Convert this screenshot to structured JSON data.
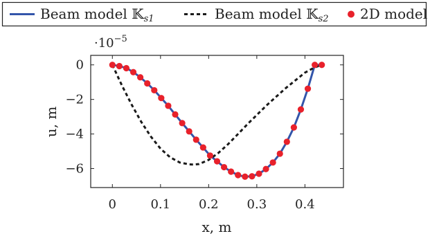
{
  "chart_data": {
    "type": "line",
    "title": "",
    "xlabel": "x, m",
    "ylabel": "u, m",
    "y_scale_note": "·10",
    "y_scale_exponent": "−5",
    "xlim": [
      -0.045,
      0.48
    ],
    "ylim": [
      -7.1,
      0.55
    ],
    "x_ticks": [
      0,
      0.1,
      0.2,
      0.3,
      0.4
    ],
    "x_tick_labels": [
      "0",
      "0.1",
      "0.2",
      "0.3",
      "0.4"
    ],
    "y_ticks": [
      0,
      -2,
      -4,
      -6
    ],
    "y_tick_labels": [
      "0",
      "−2",
      "−4",
      "−6"
    ],
    "grid": false,
    "legend_position": "top",
    "series": [
      {
        "name": "Beam model 𝕂s1",
        "style": "solid",
        "color": "#3355aa",
        "x": [
          0,
          0.0145,
          0.029,
          0.0435,
          0.058,
          0.0725,
          0.087,
          0.1015,
          0.116,
          0.1305,
          0.145,
          0.1595,
          0.174,
          0.1885,
          0.203,
          0.2175,
          0.232,
          0.2465,
          0.261,
          0.2755,
          0.29,
          0.3045,
          0.319,
          0.3335,
          0.348,
          0.3625,
          0.377,
          0.3915,
          0.406,
          0.4205,
          0.435
        ],
        "y": [
          0,
          -0.07,
          -0.19,
          -0.42,
          -0.72,
          -1.07,
          -1.47,
          -1.92,
          -2.37,
          -2.87,
          -3.37,
          -3.85,
          -4.33,
          -4.78,
          -5.25,
          -5.58,
          -5.92,
          -6.18,
          -6.38,
          -6.47,
          -6.45,
          -6.3,
          -6.03,
          -5.65,
          -5.14,
          -4.45,
          -3.62,
          -2.58,
          -1.38,
          0,
          0
        ]
      },
      {
        "name": "Beam model 𝕂s2",
        "style": "dashed",
        "color": "#1a1a1a",
        "x": [
          0,
          0.02,
          0.04,
          0.06,
          0.08,
          0.1,
          0.12,
          0.14,
          0.16,
          0.17,
          0.18,
          0.2,
          0.22,
          0.24,
          0.26,
          0.28,
          0.3,
          0.32,
          0.34,
          0.36,
          0.38,
          0.4,
          0.42,
          0.435
        ],
        "y": [
          0,
          -1.2,
          -2.3,
          -3.3,
          -4.15,
          -4.85,
          -5.35,
          -5.65,
          -5.76,
          -5.77,
          -5.74,
          -5.5,
          -5.1,
          -4.6,
          -4.03,
          -3.45,
          -2.9,
          -2.35,
          -1.85,
          -1.35,
          -0.9,
          -0.45,
          -0.15,
          0
        ]
      },
      {
        "name": "2D model",
        "style": "markers",
        "color": "#e8212b",
        "x": [
          0,
          0.0145,
          0.029,
          0.0435,
          0.058,
          0.0725,
          0.087,
          0.1015,
          0.116,
          0.1305,
          0.145,
          0.1595,
          0.174,
          0.1885,
          0.203,
          0.2175,
          0.232,
          0.2465,
          0.261,
          0.2755,
          0.29,
          0.3045,
          0.319,
          0.3335,
          0.348,
          0.3625,
          0.377,
          0.3915,
          0.406,
          0.4205,
          0.435
        ],
        "y": [
          0,
          -0.07,
          -0.19,
          -0.42,
          -0.72,
          -1.07,
          -1.47,
          -1.92,
          -2.37,
          -2.87,
          -3.37,
          -3.85,
          -4.33,
          -4.78,
          -5.25,
          -5.58,
          -5.92,
          -6.18,
          -6.38,
          -6.47,
          -6.45,
          -6.3,
          -6.03,
          -5.65,
          -5.14,
          -4.45,
          -3.62,
          -2.58,
          -1.38,
          0,
          0
        ]
      }
    ]
  },
  "legend": {
    "items": [
      {
        "label": "Beam model ",
        "sym": "𝕂",
        "sub": "s1"
      },
      {
        "label": "Beam model ",
        "sym": "𝕂",
        "sub": "s2"
      },
      {
        "label": "2D model"
      }
    ]
  }
}
